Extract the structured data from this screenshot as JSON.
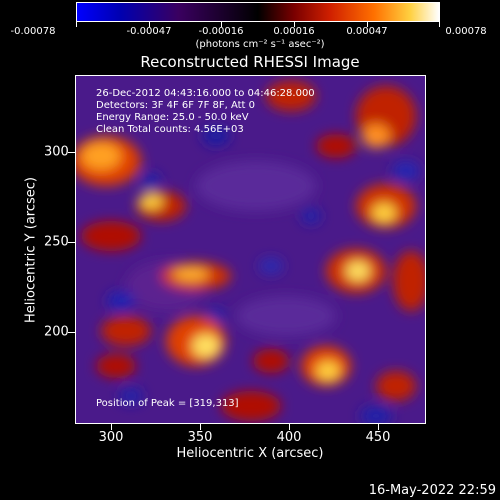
{
  "colorbar": {
    "labels": [
      "-0.00078",
      "-0.00047",
      "-0.00016",
      "0.00016",
      "0.00047",
      "0.00078"
    ],
    "units": "(photons cm⁻² s⁻¹ asec⁻²)"
  },
  "title": "Reconstructed RHESSI Image",
  "annotations": {
    "time_range": "26-Dec-2012 04:43:16.000 to 04:46:28.000",
    "detectors": "Detectors: 3F 4F 6F 7F 8F, Att 0",
    "energy": "Energy Range: 25.0 - 50.0 keV",
    "method": "Clean    Total counts: 4.56E+03",
    "peak": "Position of Peak = [319,313]"
  },
  "axes": {
    "xlabel": "Heliocentric X (arcsec)",
    "ylabel": "Heliocentric Y (arcsec)",
    "xticks": [
      "300",
      "350",
      "400",
      "450"
    ],
    "yticks": [
      "300",
      "250",
      "200"
    ]
  },
  "footer": {
    "timestamp": "16-May-2022 22:59"
  }
}
